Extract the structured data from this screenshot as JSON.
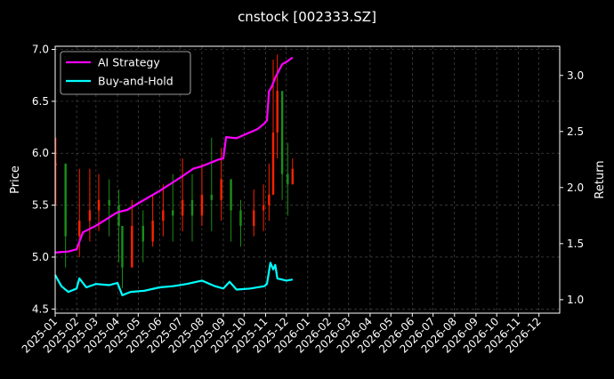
{
  "chart_data": {
    "type": "line",
    "title": "cnstock [002333.SZ]",
    "ylabel": "Price",
    "ylabel_right": "Return",
    "ylim": [
      4.46,
      7.03
    ],
    "ylim_right": [
      0.88,
      3.26
    ],
    "xlim": [
      "2025-01-01",
      "2026-12-31"
    ],
    "yticks": [
      4.5,
      5.0,
      5.5,
      6.0,
      6.5,
      7.0
    ],
    "yticks_right": [
      1.0,
      1.5,
      2.0,
      2.5,
      3.0
    ],
    "xticks": [
      "2025-01",
      "2025-02",
      "2025-03",
      "2025-04",
      "2025-05",
      "2025-06",
      "2025-07",
      "2025-08",
      "2025-09",
      "2025-10",
      "2025-11",
      "2025-12",
      "2026-01",
      "2026-02",
      "2026-03",
      "2026-04",
      "2026-05",
      "2026-06",
      "2026-07",
      "2026-08",
      "2026-09",
      "2026-10",
      "2026-11",
      "2026-12"
    ],
    "grid": true,
    "legend_position": "top-left",
    "colors": {
      "background": "#000000",
      "ai_strategy": "#ff00ff",
      "buy_and_hold": "#00ffff",
      "candle_up": "#ff2200",
      "candle_down": "#1a8f1a",
      "grid": "#555555"
    },
    "candlestick_price": {
      "x": [
        "2025-01-02",
        "2025-01-16",
        "2025-02-05",
        "2025-02-20",
        "2025-03-05",
        "2025-03-20",
        "2025-04-03",
        "2025-04-08",
        "2025-04-22",
        "2025-05-08",
        "2025-05-22",
        "2025-06-06",
        "2025-06-20",
        "2025-07-04",
        "2025-07-18",
        "2025-08-01",
        "2025-08-15",
        "2025-08-29",
        "2025-09-12",
        "2025-09-26",
        "2025-10-15",
        "2025-10-29",
        "2025-11-06",
        "2025-11-12",
        "2025-11-18",
        "2025-11-25",
        "2025-12-03",
        "2025-12-10"
      ],
      "close": [
        5.9,
        5.2,
        5.35,
        5.45,
        5.55,
        5.5,
        5.3,
        4.9,
        5.3,
        5.15,
        5.35,
        5.45,
        5.4,
        5.55,
        5.4,
        5.6,
        5.55,
        5.75,
        5.45,
        5.3,
        5.45,
        5.5,
        5.6,
        6.2,
        6.6,
        5.8,
        5.7,
        5.85
      ],
      "high": [
        6.15,
        5.5,
        5.85,
        5.85,
        5.8,
        5.75,
        5.65,
        5.2,
        5.55,
        5.45,
        5.6,
        5.7,
        5.8,
        5.95,
        5.8,
        5.9,
        6.15,
        6.05,
        5.75,
        5.55,
        5.65,
        5.7,
        5.9,
        6.9,
        6.95,
        6.25,
        6.1,
        5.95
      ],
      "low": [
        5.5,
        4.9,
        5.0,
        5.15,
        5.25,
        5.2,
        4.95,
        4.7,
        5.0,
        4.95,
        5.1,
        5.2,
        5.15,
        5.25,
        5.15,
        5.3,
        5.25,
        5.35,
        5.15,
        5.1,
        5.2,
        5.25,
        5.35,
        5.7,
        5.95,
        5.55,
        5.4,
        5.7
      ]
    },
    "series": [
      {
        "name": "AI Strategy",
        "axis": "right",
        "x": [
          "2025-01-01",
          "2025-01-20",
          "2025-02-01",
          "2025-02-10",
          "2025-03-01",
          "2025-04-01",
          "2025-04-15",
          "2025-05-01",
          "2025-06-01",
          "2025-07-01",
          "2025-07-20",
          "2025-08-01",
          "2025-08-25",
          "2025-09-01",
          "2025-09-05",
          "2025-09-20",
          "2025-10-01",
          "2025-10-20",
          "2025-10-30",
          "2025-11-03",
          "2025-11-06",
          "2025-11-10",
          "2025-11-15",
          "2025-11-20",
          "2025-11-25",
          "2025-12-01",
          "2025-12-10"
        ],
        "values": [
          1.42,
          1.43,
          1.45,
          1.6,
          1.66,
          1.78,
          1.8,
          1.86,
          1.97,
          2.09,
          2.17,
          2.19,
          2.25,
          2.26,
          2.45,
          2.44,
          2.47,
          2.52,
          2.57,
          2.6,
          2.86,
          2.9,
          2.98,
          3.04,
          3.1,
          3.12,
          3.16
        ]
      },
      {
        "name": "Buy-and-Hold",
        "axis": "right",
        "x": [
          "2025-01-01",
          "2025-01-10",
          "2025-01-20",
          "2025-02-01",
          "2025-02-05",
          "2025-02-15",
          "2025-03-01",
          "2025-03-20",
          "2025-04-01",
          "2025-04-08",
          "2025-04-20",
          "2025-05-10",
          "2025-06-01",
          "2025-06-20",
          "2025-07-10",
          "2025-08-01",
          "2025-08-20",
          "2025-09-01",
          "2025-09-10",
          "2025-09-20",
          "2025-10-10",
          "2025-10-30",
          "2025-11-03",
          "2025-11-08",
          "2025-11-12",
          "2025-11-15",
          "2025-11-18",
          "2025-12-01",
          "2025-12-10"
        ],
        "values": [
          1.22,
          1.12,
          1.07,
          1.1,
          1.19,
          1.11,
          1.14,
          1.13,
          1.15,
          1.04,
          1.07,
          1.08,
          1.11,
          1.12,
          1.14,
          1.17,
          1.12,
          1.1,
          1.16,
          1.09,
          1.1,
          1.12,
          1.14,
          1.33,
          1.27,
          1.31,
          1.19,
          1.17,
          1.18
        ]
      }
    ]
  }
}
